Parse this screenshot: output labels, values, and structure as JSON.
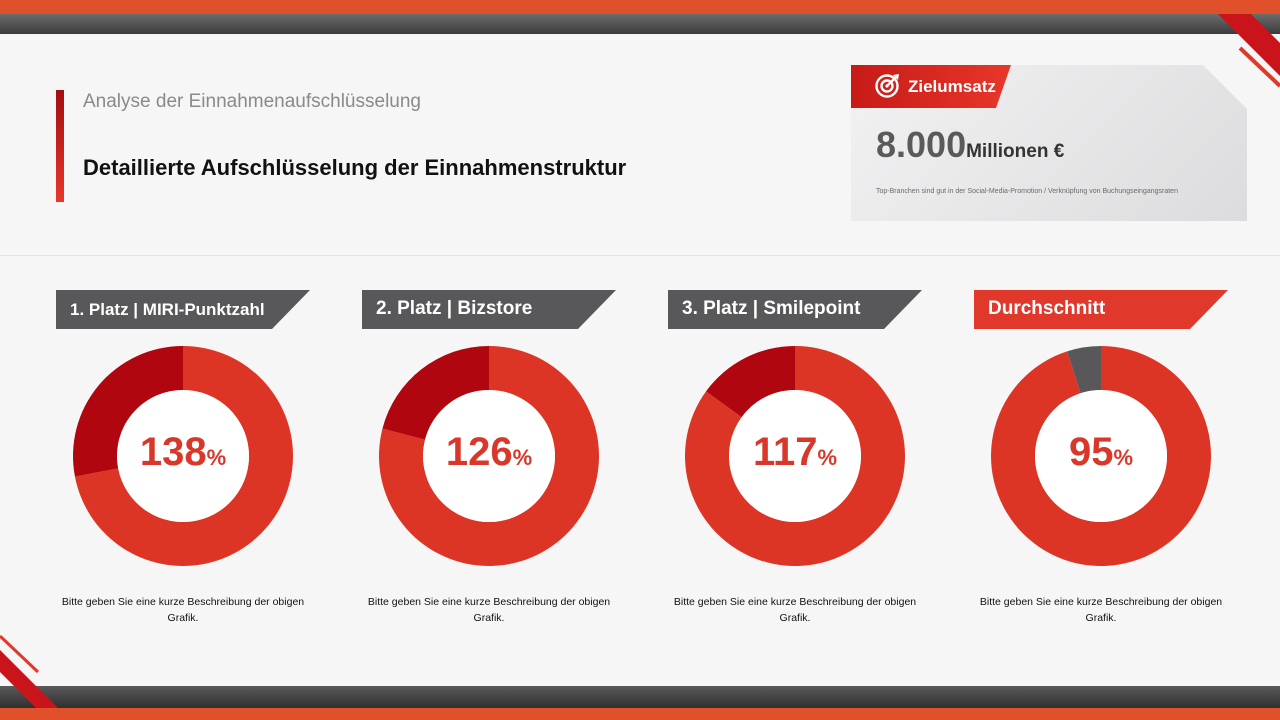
{
  "header": {
    "subtitle": "Analyse der Einnahmenaufschlüsselung",
    "title": "Detaillierte Aufschlüsselung der Einnahmenstruktur"
  },
  "target": {
    "label": "Zielumsatz",
    "icon": "target-icon",
    "value": "8.000",
    "unit": "Millionen €",
    "note": "Top-Branchen sind gut in der Social-Media-Promotion / Verknüpfung von Buchungseingangsraten"
  },
  "colors": {
    "primary_red": "#d9372a",
    "dark_red": "#b0060f",
    "gray": "#58585a",
    "orange": "#e0502a"
  },
  "chart_data": [
    {
      "type": "pie",
      "title": "1. Platz | MIRI-Punktzahl",
      "value_label": "138",
      "unit": "%",
      "values": [
        72,
        28
      ],
      "description": "Bitte geben Sie eine kurze Beschreibung der obigen Grafik.",
      "colors": [
        "#dc3525",
        "#b0060f"
      ],
      "header_style": "gray"
    },
    {
      "type": "pie",
      "title": "2. Platz | Bizstore",
      "value_label": "126",
      "unit": "%",
      "values": [
        79,
        21
      ],
      "description": "Bitte geben Sie eine kurze Beschreibung der obigen Grafik.",
      "colors": [
        "#dc3525",
        "#b0060f"
      ],
      "header_style": "gray"
    },
    {
      "type": "pie",
      "title": "3. Platz | Smilepoint",
      "value_label": "117",
      "unit": "%",
      "values": [
        85,
        15
      ],
      "description": "Bitte geben Sie eine kurze Beschreibung der obigen Grafik.",
      "colors": [
        "#dc3525",
        "#b0060f"
      ],
      "header_style": "gray"
    },
    {
      "type": "pie",
      "title": "Durchschnitt",
      "value_label": "95",
      "unit": "%",
      "values": [
        95,
        5
      ],
      "description": "Bitte geben Sie eine kurze Beschreibung der obigen Grafik.",
      "colors": [
        "#dc3525",
        "#58585a"
      ],
      "header_style": "red"
    }
  ]
}
